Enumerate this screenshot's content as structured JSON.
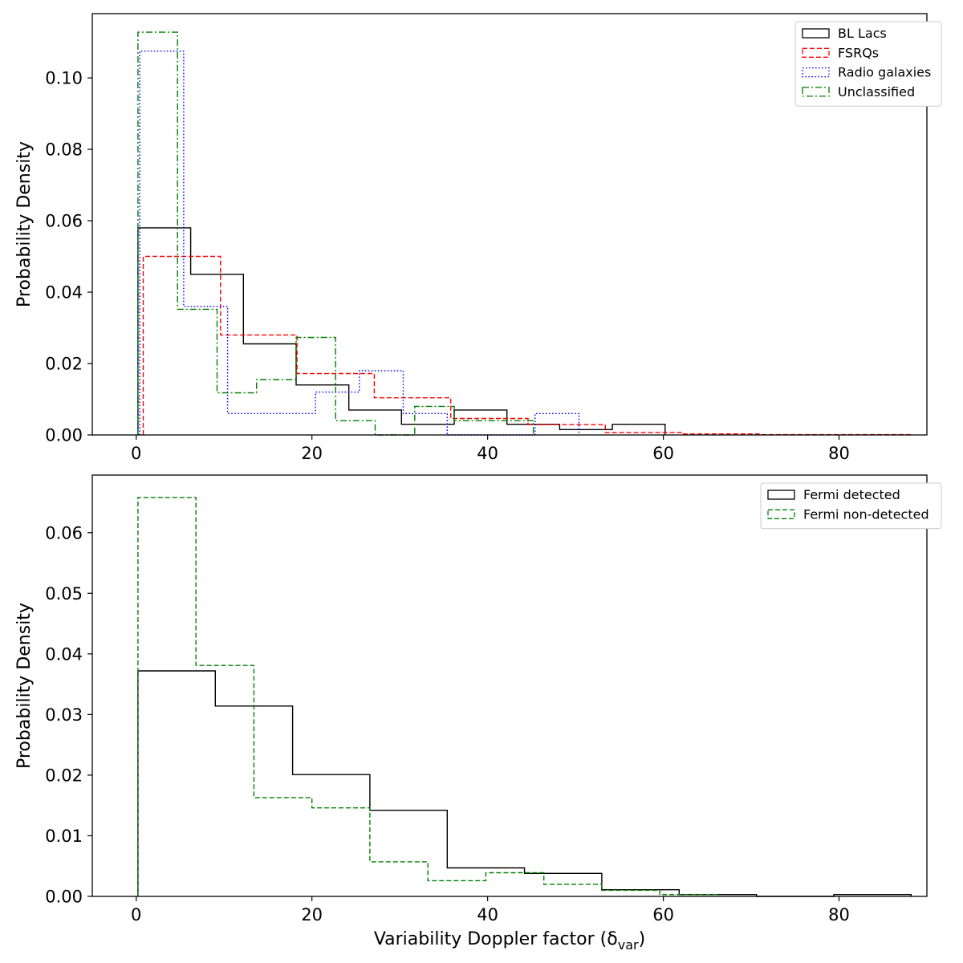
{
  "chart_data": [
    {
      "type": "histogram",
      "ylabel": "Probability Density",
      "xlabel": "",
      "xlim": [
        -5,
        90
      ],
      "ylim": [
        0,
        0.118
      ],
      "xticks": [
        0,
        20,
        40,
        60,
        80
      ],
      "xtick_labels": [
        "0",
        "20",
        "40",
        "60",
        "80"
      ],
      "yticks": [
        0.0,
        0.02,
        0.04,
        0.06,
        0.08,
        0.1
      ],
      "ytick_labels": [
        "0.00",
        "0.02",
        "0.04",
        "0.06",
        "0.08",
        "0.10"
      ],
      "legend_position": "top-right",
      "series": [
        {
          "name": "BL Lacs",
          "color": "#000000",
          "dash": "solid",
          "edges": [
            0.2,
            6.2,
            12.2,
            18.2,
            24.2,
            30.2,
            36.2,
            42.2,
            48.2,
            54.2,
            60.2
          ],
          "values": [
            0.058,
            0.045,
            0.0255,
            0.014,
            0.007,
            0.003,
            0.007,
            0.003,
            0.0015,
            0.003
          ]
        },
        {
          "name": "FSRQs",
          "color": "#ff0000",
          "dash": "dashed",
          "edges": [
            0.8,
            9.6,
            18.3,
            27.1,
            35.8,
            44.6,
            53.4,
            62.1,
            70.9,
            79.6,
            88.4
          ],
          "values": [
            0.05,
            0.028,
            0.0172,
            0.0104,
            0.0046,
            0.0029,
            0.0007,
            0.0003,
            0.0001,
            0.0001
          ]
        },
        {
          "name": "Radio galaxies",
          "color": "#0000ff",
          "dash": "dotted",
          "edges": [
            0.4,
            5.4,
            10.4,
            15.4,
            20.4,
            25.4,
            30.4,
            35.4,
            40.4,
            45.4,
            50.4
          ],
          "values": [
            0.1075,
            0.036,
            0.006,
            0.006,
            0.012,
            0.018,
            0.006,
            0.0,
            0.0,
            0.006
          ]
        },
        {
          "name": "Unclassified",
          "color": "#008000",
          "dash": "dashdot",
          "edges": [
            0.2,
            4.7,
            9.2,
            13.7,
            18.2,
            22.7,
            27.2,
            31.7,
            36.2,
            40.7,
            45.2
          ],
          "values": [
            0.1128,
            0.0352,
            0.0118,
            0.0155,
            0.0273,
            0.004,
            0.0,
            0.008,
            0.004,
            0.004
          ]
        }
      ]
    },
    {
      "type": "histogram",
      "ylabel": "Probability Density",
      "xlabel": "Variability Doppler factor (δ",
      "xlabel_sub": "var",
      "xlabel_tail": ")",
      "xlim": [
        -5,
        90
      ],
      "ylim": [
        0,
        0.0695
      ],
      "xticks": [
        0,
        20,
        40,
        60,
        80
      ],
      "xtick_labels": [
        "0",
        "20",
        "40",
        "60",
        "80"
      ],
      "yticks": [
        0.0,
        0.01,
        0.02,
        0.03,
        0.04,
        0.05,
        0.06
      ],
      "ytick_labels": [
        "0.00",
        "0.01",
        "0.02",
        "0.03",
        "0.04",
        "0.05",
        "0.06"
      ],
      "legend_position": "top-right",
      "series": [
        {
          "name": "Fermi detected",
          "color": "#000000",
          "dash": "solid",
          "edges": [
            0.2,
            9.0,
            17.8,
            26.6,
            35.4,
            44.2,
            53.0,
            61.8,
            70.6,
            79.4,
            88.2
          ],
          "values": [
            0.0372,
            0.0314,
            0.0201,
            0.0142,
            0.0047,
            0.0038,
            0.0011,
            0.0003,
            0.0,
            0.0003
          ]
        },
        {
          "name": "Fermi non-detected",
          "color": "#008000",
          "dash": "dashed",
          "edges": [
            0.2,
            6.8,
            13.4,
            20.0,
            26.6,
            33.2,
            39.8,
            46.4,
            53.0,
            59.6,
            66.2
          ],
          "values": [
            0.0658,
            0.0381,
            0.0163,
            0.0146,
            0.0057,
            0.0026,
            0.0039,
            0.002,
            0.001,
            0.0003
          ]
        }
      ]
    }
  ]
}
